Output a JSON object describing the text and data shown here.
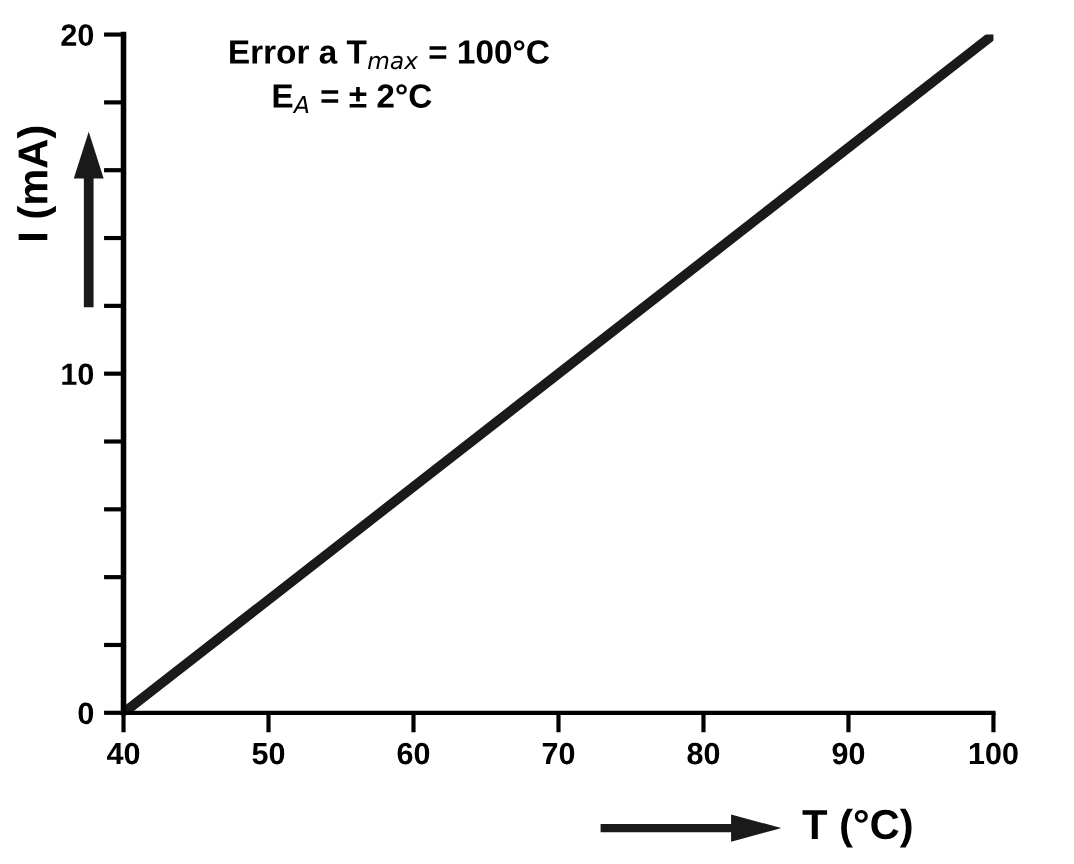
{
  "chart_data": {
    "type": "line",
    "xlabel": "T (°C)",
    "ylabel": "I (mA)",
    "x": [
      40,
      100
    ],
    "series": [
      {
        "color": "#1a1a1a",
        "values": [
          0,
          20
        ]
      }
    ],
    "xlim": [
      40,
      100
    ],
    "ylim": [
      0,
      20
    ],
    "xticks": [
      40,
      50,
      60,
      70,
      80,
      90,
      100
    ],
    "yticks": [
      0,
      {
        "value": 2,
        "label": null
      },
      {
        "value": 4,
        "label": null
      },
      {
        "value": 6,
        "label": null
      },
      {
        "value": 8,
        "label": null
      },
      10,
      {
        "value": 12,
        "label": null
      },
      {
        "value": 14,
        "label": null
      },
      {
        "value": 16,
        "label": null
      },
      {
        "value": 18,
        "label": null
      },
      20
    ],
    "annotations": [
      "Error a T$_{max}$ = 100°C",
      "E$_{A}$ = ± 2°C"
    ],
    "grid": false,
    "legend": false,
    "marker": "none",
    "line_style": "solid"
  }
}
